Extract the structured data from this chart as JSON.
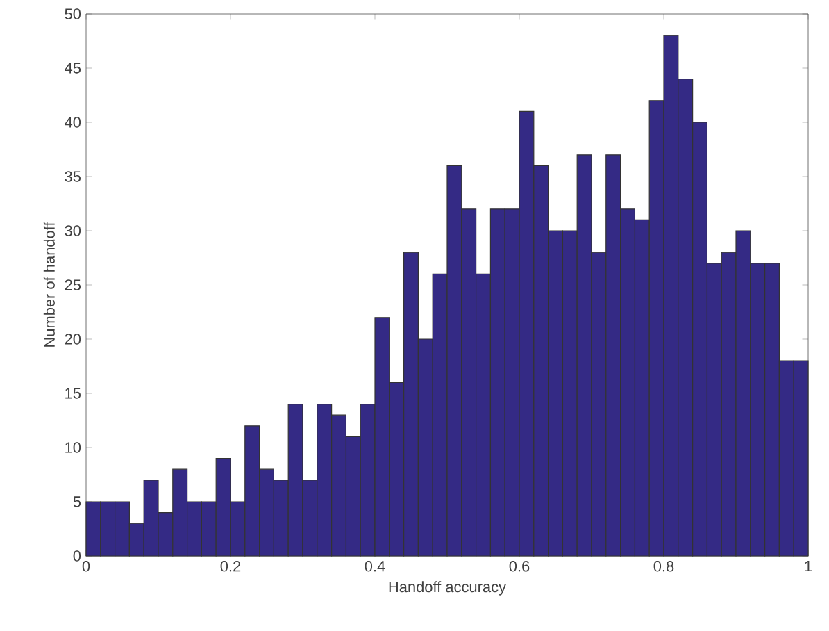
{
  "chart_data": {
    "type": "histogram",
    "xlabel": "Handoff accuracy",
    "ylabel": "Number of handoff",
    "bins": [
      0,
      0.02,
      0.04,
      0.06,
      0.08,
      0.1,
      0.12,
      0.14,
      0.16,
      0.18,
      0.2,
      0.22,
      0.24,
      0.26,
      0.28,
      0.3,
      0.32,
      0.34,
      0.36,
      0.38,
      0.4,
      0.42,
      0.44,
      0.46,
      0.48,
      0.5,
      0.52,
      0.54,
      0.56,
      0.58,
      0.6,
      0.62,
      0.64,
      0.66,
      0.68,
      0.7,
      0.72,
      0.74,
      0.76,
      0.78,
      0.8,
      0.82,
      0.84,
      0.86,
      0.88,
      0.9,
      0.92,
      0.94,
      0.96,
      0.98,
      1
    ],
    "values": [
      5,
      5,
      5,
      3,
      7,
      4,
      8,
      5,
      5,
      9,
      5,
      12,
      8,
      7,
      14,
      7,
      14,
      13,
      11,
      14,
      22,
      16,
      28,
      20,
      26,
      36,
      32,
      26,
      32,
      32,
      41,
      36,
      30,
      30,
      37,
      28,
      37,
      32,
      31,
      42,
      48,
      44,
      40,
      27,
      28,
      30,
      27,
      27,
      18,
      18
    ],
    "color": "#342a85",
    "xlim": [
      0,
      1
    ],
    "xticks": [
      0,
      0.2,
      0.4,
      0.6,
      0.8,
      1
    ],
    "ylim": [
      0,
      50
    ],
    "yticks": [
      0,
      5,
      10,
      15,
      20,
      25,
      30,
      35,
      40,
      45,
      50
    ]
  }
}
